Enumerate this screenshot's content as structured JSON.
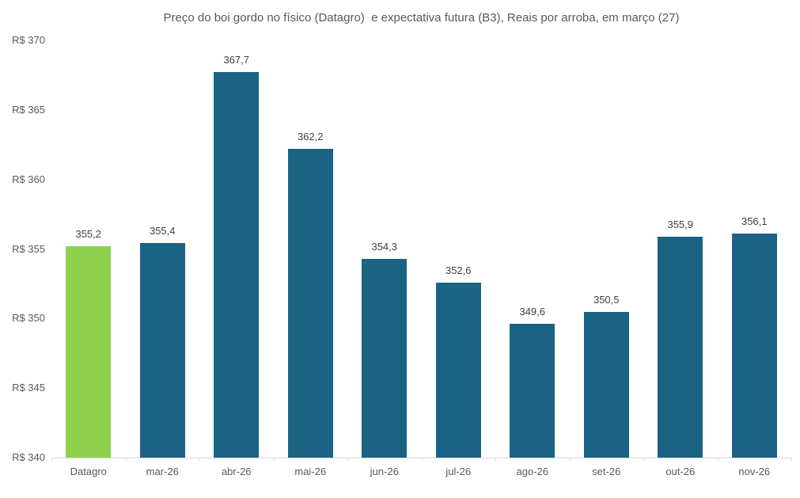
{
  "chart_data": {
    "type": "bar",
    "title": "Preço do boi gordo no físico (Datagro)  e expectativa futura (B3), Reais por arroba, em março (27)",
    "categories": [
      "Datagro",
      "mar-26",
      "abr-26",
      "mai-26",
      "jun-26",
      "jul-26",
      "ago-26",
      "set-26",
      "out-26",
      "nov-26"
    ],
    "values": [
      355.2,
      355.4,
      367.7,
      362.2,
      354.3,
      352.6,
      349.6,
      350.5,
      355.9,
      356.1
    ],
    "value_labels": [
      "355,2",
      "355,4",
      "367,7",
      "362,2",
      "354,3",
      "352,6",
      "349,6",
      "350,5",
      "355,9",
      "356,1"
    ],
    "bar_colors": [
      "#8dd14f",
      "#1a6385",
      "#1a6385",
      "#1a6385",
      "#1a6385",
      "#1a6385",
      "#1a6385",
      "#1a6385",
      "#1a6385",
      "#1a6385"
    ],
    "xlabel": "",
    "ylabel": "",
    "ylim": [
      340,
      370
    ],
    "ytick_step": 5,
    "ytick_values": [
      340,
      345,
      350,
      355,
      360,
      365,
      370
    ],
    "ytick_labels": [
      "R$ 340",
      "R$ 345",
      "R$ 350",
      "R$ 355",
      "R$ 360",
      "R$ 365",
      "R$ 370"
    ],
    "grid": false,
    "legend": false,
    "colors": {
      "highlight": "#8dd14f",
      "series": "#1a6385",
      "axis_line": "#d9d9d9",
      "title_text": "#595959",
      "axis_text": "#595959",
      "value_label_text": "#404040"
    }
  }
}
